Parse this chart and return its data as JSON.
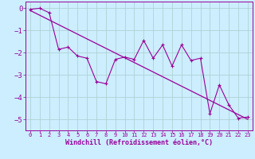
{
  "xlabel": "Windchill (Refroidissement éolien,°C)",
  "bg_color": "#cceeff",
  "line_color": "#990099",
  "grid_color": "#aacccc",
  "x_data": [
    0,
    1,
    2,
    3,
    4,
    5,
    6,
    7,
    8,
    9,
    10,
    11,
    12,
    13,
    14,
    15,
    16,
    17,
    18,
    19,
    20,
    21,
    22,
    23
  ],
  "y_data": [
    -0.05,
    0.0,
    -0.2,
    -1.85,
    -1.75,
    -2.15,
    -2.25,
    -3.3,
    -3.4,
    -2.3,
    -2.2,
    -2.3,
    -1.45,
    -2.25,
    -1.65,
    -2.6,
    -1.65,
    -2.35,
    -2.25,
    -4.75,
    -3.45,
    -4.35,
    -4.95,
    -4.9
  ],
  "trend_x": [
    0,
    23
  ],
  "trend_y": [
    -0.1,
    -5.0
  ],
  "ylim": [
    -5.5,
    0.3
  ],
  "xlim": [
    -0.5,
    23.5
  ],
  "xticks": [
    0,
    1,
    2,
    3,
    4,
    5,
    6,
    7,
    8,
    9,
    10,
    11,
    12,
    13,
    14,
    15,
    16,
    17,
    18,
    19,
    20,
    21,
    22,
    23
  ],
  "yticks": [
    0,
    -1,
    -2,
    -3,
    -4,
    -5
  ],
  "fontsize_xlabel": 6.0,
  "fontsize_ytick": 6.5,
  "fontsize_xtick": 5.0
}
